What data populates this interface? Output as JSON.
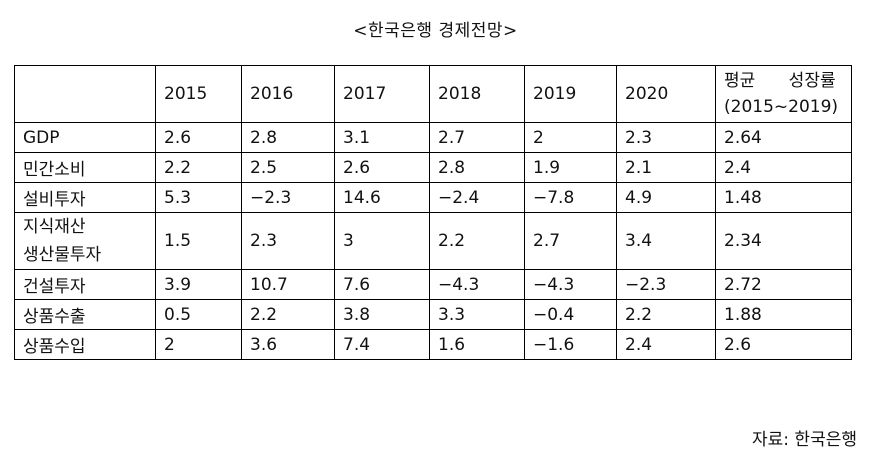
{
  "title": "<한국은행 경제전망>",
  "table": {
    "corner": "",
    "years": [
      "2015",
      "2016",
      "2017",
      "2018",
      "2019",
      "2020"
    ],
    "avg_header_line1": "평균 성장률",
    "avg_header_line2": "(2015~2019)",
    "rows": [
      {
        "label": "GDP",
        "values": [
          "2.6",
          "2.8",
          "3.1",
          "2.7",
          "2",
          "2.3"
        ],
        "avg": "2.64"
      },
      {
        "label": "민간소비",
        "values": [
          "2.2",
          "2.5",
          "2.6",
          "2.8",
          "1.9",
          "2.1"
        ],
        "avg": "2.4"
      },
      {
        "label": "설비투자",
        "values": [
          "5.3",
          "−2.3",
          "14.6",
          "−2.4",
          "−7.8",
          "4.9"
        ],
        "avg": "1.48"
      },
      {
        "label_line1": "지식재산",
        "label_line2": "생산물투자",
        "values": [
          "1.5",
          "2.3",
          "3",
          "2.2",
          "2.7",
          "3.4"
        ],
        "avg": "2.34"
      },
      {
        "label": "건설투자",
        "values": [
          "3.9",
          "10.7",
          "7.6",
          "−4.3",
          "−4.3",
          "−2.3"
        ],
        "avg": "2.72"
      },
      {
        "label": "상품수출",
        "values": [
          "0.5",
          "2.2",
          "3.8",
          "3.3",
          "−0.4",
          "2.2"
        ],
        "avg": "1.88"
      },
      {
        "label": "상품수입",
        "values": [
          "2",
          "3.6",
          "7.4",
          "1.6",
          "−1.6",
          "2.4"
        ],
        "avg": "2.6"
      }
    ]
  },
  "source": "자료: 한국은행"
}
